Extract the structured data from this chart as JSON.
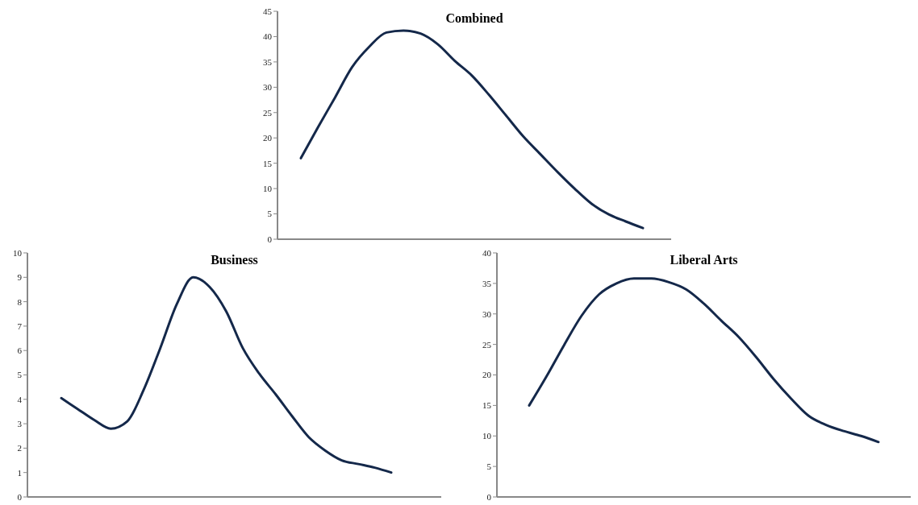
{
  "chart_data": [
    {
      "type": "line",
      "title": "Combined",
      "categories": [
        null,
        null,
        null,
        null,
        null,
        null,
        null,
        null,
        null,
        null,
        null,
        null,
        null,
        null,
        null,
        null,
        null,
        null,
        null,
        null,
        null
      ],
      "series": [
        {
          "color": "#14284a",
          "values": [
            16.0,
            22.1,
            28.0,
            34.0,
            38.0,
            40.8,
            41.2,
            40.6,
            38.5,
            35.2,
            32.3,
            28.5,
            24.4,
            20.3,
            16.8,
            13.3,
            10.0,
            7.0,
            4.9,
            3.5,
            2.2
          ]
        }
      ],
      "ylim": [
        0,
        45
      ],
      "yticks": [
        0,
        5,
        10,
        15,
        20,
        25,
        30,
        35,
        40,
        45
      ],
      "grid": false,
      "tick_labels": "y",
      "marker": "none",
      "line_style": "solid"
    },
    {
      "type": "line",
      "title": "Business",
      "categories": [
        null,
        null,
        null,
        null,
        null,
        null,
        null,
        null,
        null,
        null,
        null,
        null,
        null,
        null,
        null,
        null,
        null,
        null,
        null,
        null,
        null
      ],
      "series": [
        {
          "color": "#14284a",
          "values": [
            4.05,
            3.6,
            3.15,
            2.8,
            3.1,
            4.4,
            6.1,
            7.9,
            9.0,
            8.6,
            7.6,
            6.1,
            5.05,
            4.2,
            3.3,
            2.45,
            1.9,
            1.5,
            1.35,
            1.2,
            1.0
          ]
        }
      ],
      "ylim": [
        0,
        10
      ],
      "yticks": [
        0,
        1,
        2,
        3,
        4,
        5,
        6,
        7,
        8,
        9,
        10
      ],
      "grid": false,
      "tick_labels": "y",
      "marker": "none",
      "line_style": "solid"
    },
    {
      "type": "line",
      "title": "Liberal Arts",
      "categories": [
        null,
        null,
        null,
        null,
        null,
        null,
        null,
        null,
        null,
        null,
        null,
        null,
        null,
        null,
        null,
        null,
        null,
        null,
        null,
        null,
        null
      ],
      "series": [
        {
          "color": "#14284a",
          "values": [
            15.0,
            19.8,
            24.9,
            29.7,
            33.2,
            35.0,
            35.8,
            35.8,
            35.2,
            34.0,
            31.7,
            28.9,
            26.2,
            22.9,
            19.3,
            16.1,
            13.3,
            11.8,
            10.8,
            10.0,
            9.0
          ]
        }
      ],
      "ylim": [
        0,
        40
      ],
      "yticks": [
        0,
        5,
        10,
        15,
        20,
        25,
        30,
        35,
        40
      ],
      "grid": false,
      "tick_labels": "y",
      "marker": "none",
      "line_style": "solid"
    }
  ]
}
